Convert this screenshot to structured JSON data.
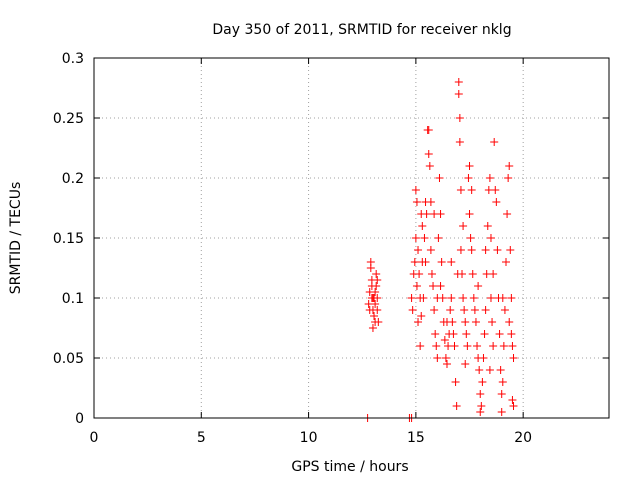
{
  "chart_data": {
    "type": "scatter",
    "title": "Day 350 of 2011, SRMTID for receiver nklg",
    "xlabel": "GPS time / hours",
    "ylabel": "SRMTID / TECUs",
    "xlim": [
      0,
      24
    ],
    "ylim": [
      0,
      0.3
    ],
    "xticks": [
      0,
      5,
      10,
      15,
      20
    ],
    "yticks": [
      0,
      0.05,
      0.1,
      0.15,
      0.2,
      0.25,
      0.3
    ],
    "xtick_labels": [
      "0",
      "5",
      "10",
      "15",
      "20"
    ],
    "ytick_labels": [
      "0",
      "0.05",
      "0.1",
      "0.15",
      "0.2",
      "0.25",
      "0.3"
    ],
    "grid": true,
    "marker": "+",
    "color": "#ff0000",
    "series": [
      {
        "name": "SRMTID",
        "points": [
          [
            12.75,
            0.0
          ],
          [
            14.7,
            0.0
          ],
          [
            14.8,
            0.0
          ],
          [
            12.8,
            0.095
          ],
          [
            12.85,
            0.105
          ],
          [
            12.9,
            0.13
          ],
          [
            12.9,
            0.125
          ],
          [
            12.95,
            0.115
          ],
          [
            12.95,
            0.11
          ],
          [
            13.0,
            0.1
          ],
          [
            13.0,
            0.09
          ],
          [
            13.05,
            0.085
          ],
          [
            13.05,
            0.1
          ],
          [
            13.1,
            0.095
          ],
          [
            13.1,
            0.105
          ],
          [
            13.15,
            0.11
          ],
          [
            13.15,
            0.12
          ],
          [
            13.2,
            0.1
          ],
          [
            13.2,
            0.09
          ],
          [
            13.25,
            0.08
          ],
          [
            12.85,
            0.09
          ],
          [
            13.0,
            0.075
          ],
          [
            13.1,
            0.08
          ],
          [
            13.2,
            0.115
          ],
          [
            12.95,
            0.1
          ],
          [
            14.8,
            0.1
          ],
          [
            14.85,
            0.09
          ],
          [
            14.9,
            0.12
          ],
          [
            14.95,
            0.13
          ],
          [
            15.0,
            0.15
          ],
          [
            15.0,
            0.19
          ],
          [
            15.05,
            0.18
          ],
          [
            15.05,
            0.11
          ],
          [
            15.1,
            0.08
          ],
          [
            15.1,
            0.14
          ],
          [
            15.15,
            0.12
          ],
          [
            15.2,
            0.1
          ],
          [
            15.2,
            0.06
          ],
          [
            15.25,
            0.085
          ],
          [
            15.3,
            0.13
          ],
          [
            15.3,
            0.16
          ],
          [
            15.35,
            0.1
          ],
          [
            15.4,
            0.15
          ],
          [
            15.45,
            0.18
          ],
          [
            15.5,
            0.17
          ],
          [
            15.55,
            0.24
          ],
          [
            15.6,
            0.24
          ],
          [
            15.6,
            0.22
          ],
          [
            15.65,
            0.21
          ],
          [
            15.7,
            0.18
          ],
          [
            15.7,
            0.14
          ],
          [
            15.75,
            0.12
          ],
          [
            15.8,
            0.11
          ],
          [
            15.85,
            0.09
          ],
          [
            15.9,
            0.07
          ],
          [
            15.95,
            0.06
          ],
          [
            16.0,
            0.05
          ],
          [
            16.0,
            0.1
          ],
          [
            16.05,
            0.15
          ],
          [
            16.1,
            0.2
          ],
          [
            16.15,
            0.17
          ],
          [
            16.2,
            0.13
          ],
          [
            16.25,
            0.1
          ],
          [
            16.3,
            0.08
          ],
          [
            16.35,
            0.065
          ],
          [
            16.4,
            0.05
          ],
          [
            16.45,
            0.045
          ],
          [
            16.5,
            0.06
          ],
          [
            16.55,
            0.07
          ],
          [
            16.6,
            0.09
          ],
          [
            16.65,
            0.1
          ],
          [
            16.7,
            0.08
          ],
          [
            16.75,
            0.07
          ],
          [
            16.8,
            0.06
          ],
          [
            16.85,
            0.03
          ],
          [
            16.9,
            0.01
          ],
          [
            16.95,
            0.12
          ],
          [
            17.0,
            0.28
          ],
          [
            17.0,
            0.27
          ],
          [
            17.05,
            0.25
          ],
          [
            17.05,
            0.23
          ],
          [
            17.1,
            0.19
          ],
          [
            17.1,
            0.14
          ],
          [
            17.15,
            0.12
          ],
          [
            17.2,
            0.1
          ],
          [
            17.25,
            0.09
          ],
          [
            17.3,
            0.08
          ],
          [
            17.35,
            0.07
          ],
          [
            17.4,
            0.06
          ],
          [
            17.45,
            0.2
          ],
          [
            17.5,
            0.21
          ],
          [
            17.5,
            0.17
          ],
          [
            17.55,
            0.15
          ],
          [
            17.6,
            0.14
          ],
          [
            17.65,
            0.12
          ],
          [
            17.7,
            0.1
          ],
          [
            17.75,
            0.09
          ],
          [
            17.8,
            0.08
          ],
          [
            17.85,
            0.06
          ],
          [
            17.9,
            0.05
          ],
          [
            17.95,
            0.04
          ],
          [
            18.0,
            0.02
          ],
          [
            18.0,
            0.005
          ],
          [
            18.05,
            0.01
          ],
          [
            18.1,
            0.03
          ],
          [
            18.15,
            0.05
          ],
          [
            18.2,
            0.07
          ],
          [
            18.25,
            0.09
          ],
          [
            18.3,
            0.12
          ],
          [
            18.35,
            0.16
          ],
          [
            18.4,
            0.19
          ],
          [
            18.45,
            0.2
          ],
          [
            18.5,
            0.15
          ],
          [
            18.5,
            0.1
          ],
          [
            18.55,
            0.08
          ],
          [
            18.6,
            0.06
          ],
          [
            18.65,
            0.23
          ],
          [
            18.7,
            0.19
          ],
          [
            18.75,
            0.18
          ],
          [
            18.8,
            0.14
          ],
          [
            18.85,
            0.1
          ],
          [
            18.9,
            0.07
          ],
          [
            18.95,
            0.04
          ],
          [
            19.0,
            0.02
          ],
          [
            19.0,
            0.005
          ],
          [
            19.05,
            0.03
          ],
          [
            19.1,
            0.06
          ],
          [
            19.15,
            0.09
          ],
          [
            19.2,
            0.13
          ],
          [
            19.25,
            0.17
          ],
          [
            19.3,
            0.2
          ],
          [
            19.35,
            0.21
          ],
          [
            19.4,
            0.14
          ],
          [
            19.45,
            0.1
          ],
          [
            19.45,
            0.07
          ],
          [
            19.5,
            0.06
          ],
          [
            19.5,
            0.015
          ],
          [
            19.55,
            0.01
          ],
          [
            19.55,
            0.05
          ],
          [
            15.25,
            0.17
          ],
          [
            15.45,
            0.13
          ],
          [
            15.85,
            0.17
          ],
          [
            16.15,
            0.11
          ],
          [
            16.45,
            0.08
          ],
          [
            16.65,
            0.13
          ],
          [
            17.2,
            0.16
          ],
          [
            17.6,
            0.19
          ],
          [
            17.9,
            0.11
          ],
          [
            18.25,
            0.14
          ],
          [
            18.6,
            0.12
          ],
          [
            19.05,
            0.1
          ],
          [
            19.35,
            0.08
          ],
          [
            17.3,
            0.045
          ],
          [
            18.45,
            0.04
          ]
        ]
      }
    ]
  }
}
